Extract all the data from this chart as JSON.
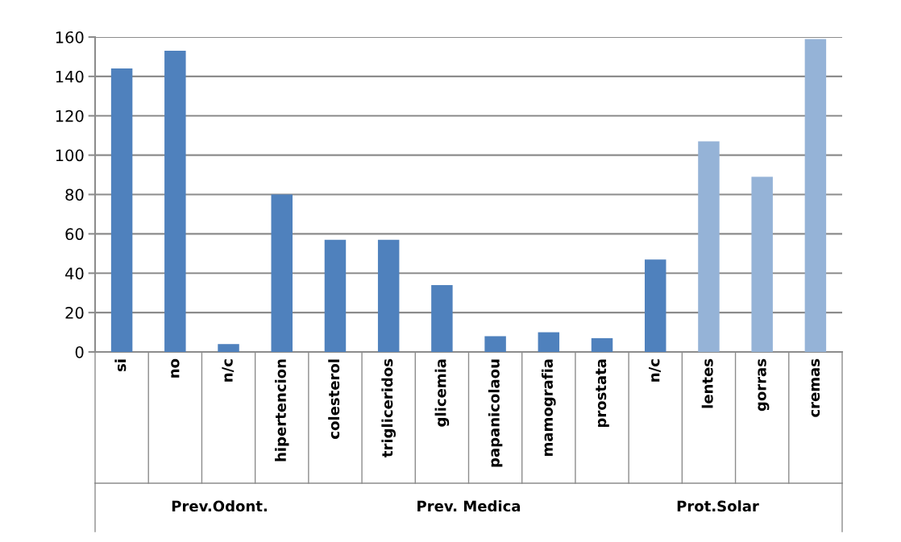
{
  "chart_data": {
    "type": "bar",
    "categories": [
      "si",
      "no",
      "n/c",
      "hipertencion",
      "colesterol",
      "trigliceridos",
      "glicemia",
      "papanicolaou",
      "mamografia",
      "prostata",
      "n/c",
      "lentes",
      "gorras",
      "cremas"
    ],
    "values": [
      144,
      153,
      4,
      80,
      57,
      57,
      34,
      8,
      10,
      7,
      47,
      107,
      89,
      159
    ],
    "colors": [
      "#4f81bd",
      "#4f81bd",
      "#4f81bd",
      "#4f81bd",
      "#4f81bd",
      "#4f81bd",
      "#4f81bd",
      "#4f81bd",
      "#4f81bd",
      "#4f81bd",
      "#4f81bd",
      "#95b3d7",
      "#95b3d7",
      "#95b3d7"
    ],
    "ylim": [
      0,
      160
    ],
    "yticks": [
      0,
      20,
      40,
      60,
      80,
      100,
      120,
      140,
      160
    ],
    "grid": "y",
    "annotations": [
      "Prev.Odont.",
      "Prev. Medica",
      "Prot.Solar"
    ]
  }
}
